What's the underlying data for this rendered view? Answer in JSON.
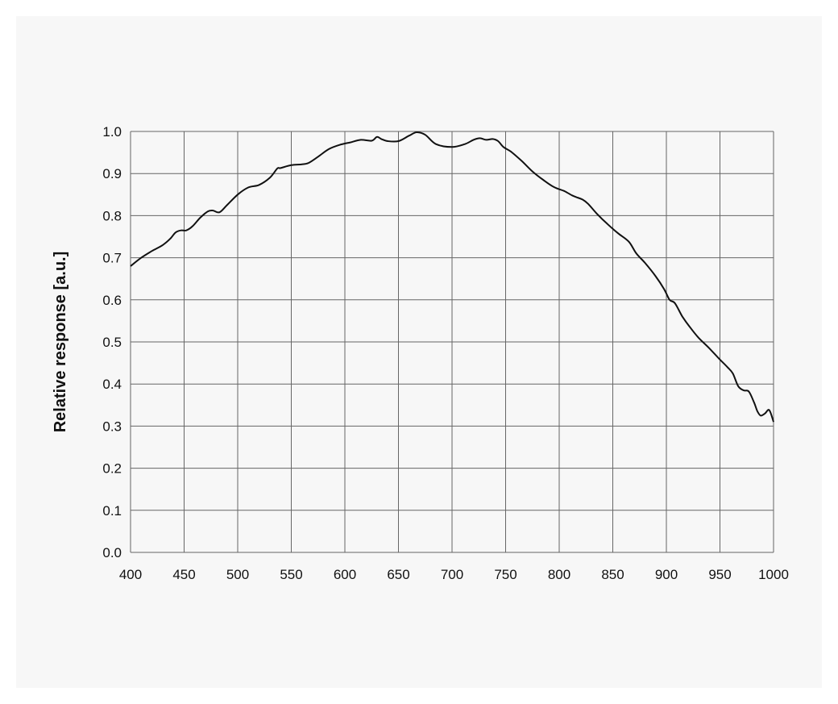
{
  "chart_data": {
    "type": "line",
    "title": "",
    "xlabel": "",
    "ylabel": "Relative response [a.u.]",
    "xlim": [
      400,
      1000
    ],
    "ylim": [
      0.0,
      1.0
    ],
    "x_ticks": [
      "400",
      "450",
      "500",
      "550",
      "600",
      "650",
      "700",
      "750",
      "800",
      "850",
      "900",
      "950",
      "1000"
    ],
    "y_ticks": [
      "0.0",
      "0.1",
      "0.2",
      "0.3",
      "0.4",
      "0.5",
      "0.6",
      "0.7",
      "0.8",
      "0.9",
      "1.0"
    ],
    "grid": true,
    "line_color": "#111111",
    "series": [
      {
        "x": [
          400,
          410,
          420,
          430,
          437,
          442,
          447,
          452,
          458,
          465,
          472,
          477,
          483,
          490,
          500,
          510,
          520,
          530,
          537,
          540,
          550,
          560,
          566,
          575,
          585,
          595,
          605,
          615,
          625,
          630,
          634,
          640,
          650,
          660,
          667,
          675,
          685,
          700,
          712,
          720,
          726,
          732,
          738,
          743,
          748,
          755,
          765,
          775,
          785,
          795,
          805,
          812,
          817,
          822,
          827,
          835,
          845,
          855,
          865,
          872,
          880,
          890,
          898,
          903,
          908,
          915,
          922,
          930,
          940,
          950,
          957,
          962,
          967,
          972,
          977,
          982,
          985,
          988,
          992,
          996,
          1000
        ],
        "y": [
          0.68,
          0.7,
          0.716,
          0.73,
          0.745,
          0.76,
          0.765,
          0.765,
          0.775,
          0.795,
          0.81,
          0.812,
          0.808,
          0.825,
          0.85,
          0.867,
          0.873,
          0.89,
          0.912,
          0.913,
          0.92,
          0.922,
          0.925,
          0.94,
          0.958,
          0.968,
          0.974,
          0.98,
          0.978,
          0.987,
          0.982,
          0.977,
          0.977,
          0.99,
          0.998,
          0.992,
          0.97,
          0.963,
          0.97,
          0.98,
          0.984,
          0.98,
          0.982,
          0.977,
          0.963,
          0.952,
          0.93,
          0.905,
          0.885,
          0.868,
          0.858,
          0.848,
          0.843,
          0.838,
          0.828,
          0.805,
          0.78,
          0.758,
          0.738,
          0.71,
          0.688,
          0.656,
          0.625,
          0.6,
          0.592,
          0.56,
          0.535,
          0.51,
          0.485,
          0.458,
          0.44,
          0.425,
          0.395,
          0.385,
          0.382,
          0.355,
          0.335,
          0.325,
          0.33,
          0.338,
          0.31
        ]
      }
    ]
  }
}
